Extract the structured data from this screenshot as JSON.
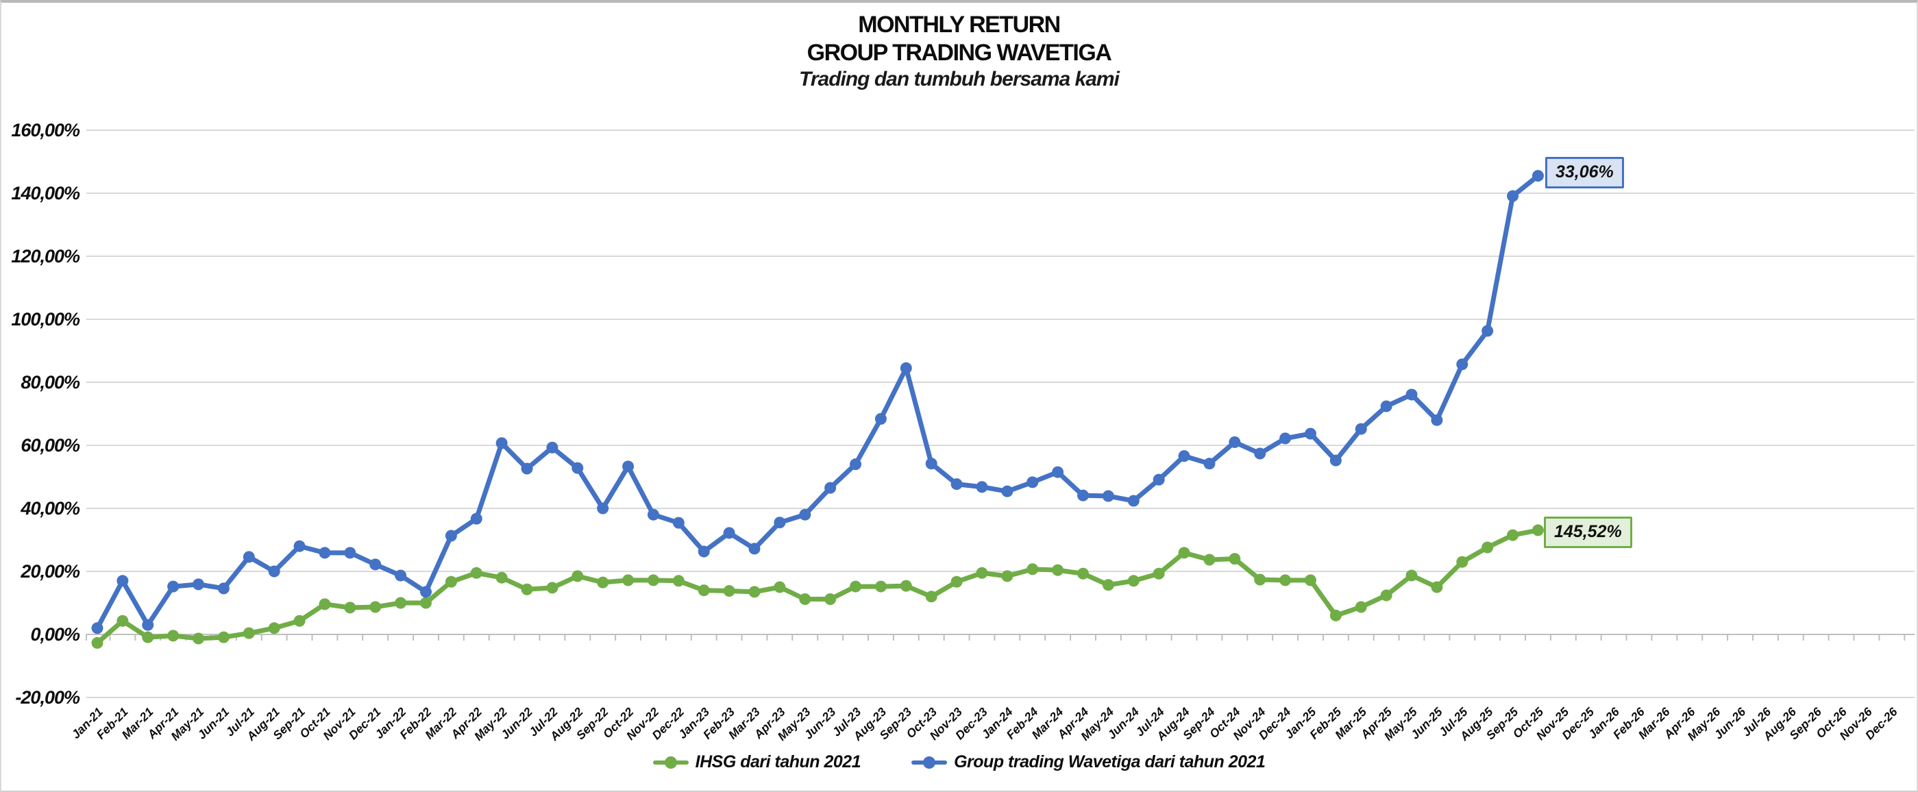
{
  "header": {
    "title_line1": "MONTHLY RETURN",
    "title_line2": "GROUP TRADING WAVETIGA",
    "subtitle": "Trading dan tumbuh bersama kami"
  },
  "chart_data": {
    "type": "line",
    "title": "MONTHLY RETURN GROUP TRADING WAVETIGA",
    "subtitle": "Trading dan tumbuh bersama kami",
    "grid": true,
    "legend_position": "bottom",
    "ylim": [
      -20,
      160
    ],
    "y_tick_labels": [
      "160,00%",
      "140,00%",
      "120,00%",
      "100,00%",
      "80,00%",
      "60,00%",
      "40,00%",
      "20,00%",
      "0,00%",
      "-20,00%"
    ],
    "y_tick_values": [
      160,
      140,
      120,
      100,
      80,
      60,
      40,
      20,
      0,
      -20
    ],
    "x": [
      "Jan-21",
      "Feb-21",
      "Mar-21",
      "Apr-21",
      "May-21",
      "Jun-21",
      "Jul-21",
      "Aug-21",
      "Sep-21",
      "Oct-21",
      "Nov-21",
      "Dec-21",
      "Jan-22",
      "Feb-22",
      "Mar-22",
      "Apr-22",
      "May-22",
      "Jun-22",
      "Jul-22",
      "Aug-22",
      "Sep-22",
      "Oct-22",
      "Nov-22",
      "Dec-22",
      "Jan-23",
      "Feb-23",
      "Mar-23",
      "Apr-23",
      "May-23",
      "Jun-23",
      "Jul-23",
      "Aug-23",
      "Sep-23",
      "Oct-23",
      "Nov-23",
      "Dec-23",
      "Jan-24",
      "Feb-24",
      "Mar-24",
      "Apr-24",
      "May-24",
      "Jun-24",
      "Jul-24",
      "Aug-24",
      "Sep-24",
      "Oct-24",
      "Nov-24",
      "Dec-24",
      "Jan-25",
      "Feb-25",
      "Mar-25",
      "Apr-25",
      "May-25",
      "Jun-25",
      "Jul-25",
      "Aug-25",
      "Sep-25",
      "Oct-25",
      "Nov-25",
      "Dec-25",
      "Jan-26",
      "Feb-26",
      "Mar-26",
      "Apr-26",
      "May-26",
      "Jun-26",
      "Jul-26",
      "Aug-26",
      "Sep-26",
      "Oct-26",
      "Nov-26",
      "Dec-26"
    ],
    "series": [
      {
        "name": "IHSG dari tahun 2021",
        "color": "#70AD47",
        "values": [
          -2.7,
          4.3,
          -0.9,
          -0.4,
          -1.3,
          -0.9,
          0.4,
          2.0,
          4.3,
          9.6,
          8.5,
          8.7,
          10.0,
          10.0,
          16.7,
          19.5,
          18.0,
          14.3,
          14.8,
          18.5,
          16.5,
          17.2,
          17.2,
          17.0,
          14.0,
          13.8,
          13.5,
          15.0,
          11.2,
          11.2,
          15.2,
          15.2,
          15.4,
          12.0,
          16.7,
          19.5,
          18.5,
          20.7,
          20.4,
          19.3,
          15.7,
          17.0,
          19.3,
          25.9,
          23.7,
          24.0,
          17.4,
          17.2,
          17.2,
          6.0,
          8.7,
          12.4,
          18.7,
          15.0,
          23.0,
          27.6,
          31.5,
          33.06
        ]
      },
      {
        "name": "Group trading Wavetiga dari tahun 2021",
        "color": "#4472C4",
        "values": [
          2.0,
          17.0,
          3.0,
          15.2,
          15.9,
          14.6,
          24.6,
          20.0,
          28.0,
          25.9,
          25.9,
          22.2,
          18.7,
          13.5,
          31.3,
          36.7,
          60.7,
          52.6,
          59.3,
          52.8,
          40.0,
          53.3,
          38.0,
          35.4,
          26.3,
          32.2,
          27.2,
          35.5,
          38.0,
          46.5,
          54.0,
          68.4,
          84.5,
          54.2,
          47.7,
          46.8,
          45.4,
          48.3,
          51.5,
          44.1,
          43.9,
          42.4,
          49.1,
          56.6,
          54.2,
          61.0,
          57.4,
          62.2,
          63.7,
          55.2,
          65.2,
          72.4,
          76.1,
          68.0,
          85.7,
          96.3,
          139.1,
          145.52
        ]
      }
    ],
    "end_labels": [
      {
        "text": "145,52%",
        "fill": "#DAE3F3",
        "border": "#4472C4"
      },
      {
        "text": "33,06%",
        "fill": "#E2EFDA",
        "border": "#70AD47"
      }
    ],
    "colors": {
      "gridline": "#d9d9d9",
      "axis_line": "#bfbfbf",
      "tick": "#bfbfbf",
      "text": "#0d0d0d"
    }
  },
  "legend": {
    "items": [
      {
        "label": "IHSG dari tahun 2021",
        "color": "#70AD47"
      },
      {
        "label": "Group trading Wavetiga dari tahun 2021",
        "color": "#4472C4"
      }
    ]
  }
}
